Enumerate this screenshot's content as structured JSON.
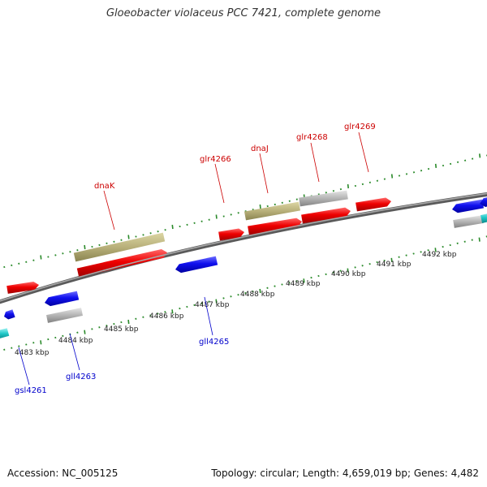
{
  "title": "Gloeobacter violaceus PCC 7421, complete genome",
  "footer": {
    "accession": "Accession: NC_005125",
    "summary": "Topology: circular; Length: 4,659,019 bp; Genes: 4,482"
  },
  "colors": {
    "backbone": "#808080",
    "forward_gene": "#e00000",
    "reverse_gene": "#1010e0",
    "rna_feature": "#b8b07a",
    "pseudo_feature": "#a8a8a8",
    "other_feature": "#20c8c8",
    "forward_label": "#cc0000",
    "reverse_label": "#0000cc",
    "tick_mark": "#2a8a2a"
  },
  "ruler": {
    "unit": "kbp",
    "tick_labels": [
      "4483 kbp",
      "4484 kbp",
      "4485 kbp",
      "4486 kbp",
      "4487 kbp",
      "4488 kbp",
      "4489 kbp",
      "4490 kbp",
      "4491 kbp",
      "4492 kbp"
    ]
  },
  "gene_labels": {
    "forward": [
      "dnaK",
      "glr4266",
      "dnaJ",
      "glr4268",
      "glr4269"
    ],
    "reverse": [
      "gsl4261",
      "gll4263",
      "gll4265"
    ]
  }
}
